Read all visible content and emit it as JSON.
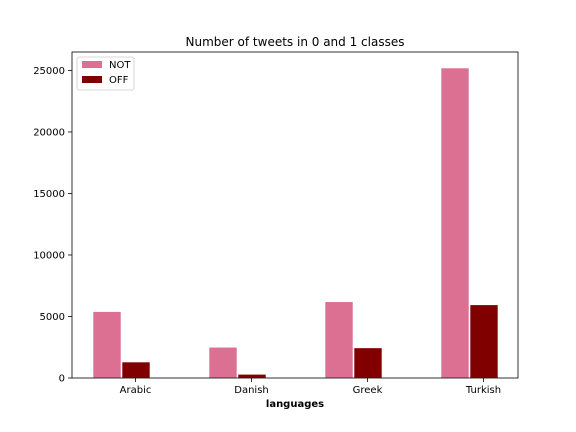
{
  "chart_data": {
    "type": "bar",
    "title": "Number of tweets in 0 and 1 classes",
    "xlabel": "languages",
    "ylabel": "",
    "categories": [
      "Arabic",
      "Danish",
      "Greek",
      "Turkish"
    ],
    "series": [
      {
        "name": "NOT",
        "color": "#dc7093",
        "values": [
          5400,
          2500,
          6200,
          25200
        ]
      },
      {
        "name": "OFF",
        "color": "#800000",
        "values": [
          1300,
          300,
          2450,
          5950
        ]
      }
    ],
    "ylim": [
      0,
      26500
    ],
    "yticks": [
      0,
      5000,
      10000,
      15000,
      20000,
      25000
    ],
    "grid": false,
    "legend": "top-left"
  }
}
